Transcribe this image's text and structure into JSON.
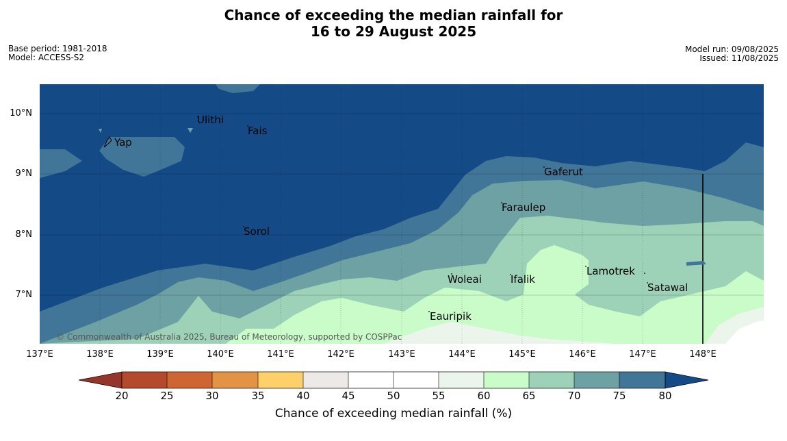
{
  "title": {
    "line1": "Chance of exceeding the median rainfall for",
    "line2": "16 to 29 August 2025"
  },
  "meta_left": {
    "base_period": "Base period: 1981-2018",
    "model": "Model: ACCESS-S2"
  },
  "meta_right": {
    "model_run": "Model run: 09/08/2025",
    "issued": "Issued: 11/08/2025"
  },
  "map": {
    "lat_labels": [
      "10°N",
      "9°N",
      "8°N",
      "7°N"
    ],
    "lon_labels": [
      "137°E",
      "138°E",
      "139°E",
      "140°E",
      "141°E",
      "142°E",
      "143°E",
      "144°E",
      "145°E",
      "146°E",
      "147°E",
      "148°E"
    ],
    "places": [
      "Ulithi",
      "Fais",
      "Yap",
      "Gaferut",
      "Faraulep",
      "Sorol",
      "Lamotrek",
      "Woleai",
      "Ifalik",
      "Satawal",
      "Eauripik"
    ],
    "copyright": "© Commonwealth of Australia 2025, Bureau of Meteorology, supported by COSPPac"
  },
  "colorbar": {
    "title": "Chance of exceeding median rainfall (%)",
    "ticks": [
      "20",
      "25",
      "30",
      "35",
      "40",
      "45",
      "50",
      "55",
      "60",
      "65",
      "70",
      "75",
      "80"
    ],
    "colors": {
      "below_20": "#94372a",
      "20-25": "#b44a2b",
      "25-30": "#d06534",
      "30-35": "#e39346",
      "35-40": "#fdd06a",
      "40-45": "#ece9e6",
      "45-50": "#ffffff",
      "50-55": "#ffffff",
      "55-60": "#ebf5eb",
      "60-65": "#cafcca",
      "65-70": "#9dd1b8",
      "70-75": "#6da1a4",
      "75-80": "#427698",
      "above_80": "#144b87"
    }
  }
}
